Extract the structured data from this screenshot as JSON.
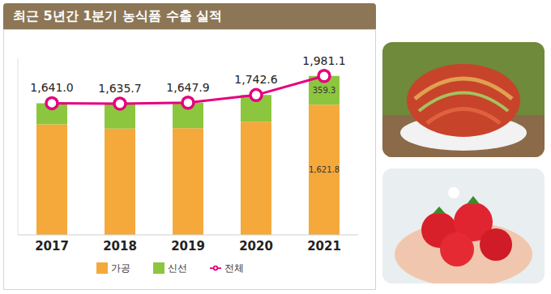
{
  "chart_data": {
    "type": "bar",
    "title": "최근 5년간 1분기 농식품 수출 실적",
    "categories": [
      "2017",
      "2018",
      "2019",
      "2020",
      "2021"
    ],
    "stacked": true,
    "ylim": [
      0,
      2200
    ],
    "yticks": [],
    "tick_labels": "x",
    "legend": "bottom",
    "series": [
      {
        "name": "가공",
        "color": "#f5a93b",
        "values": [
          1377,
          1325,
          1330,
          1410,
          1621.8
        ],
        "value_labels": [
          null,
          null,
          null,
          null,
          "1,621.8"
        ]
      },
      {
        "name": "신선",
        "color": "#8cc63e",
        "values": [
          264,
          310.7,
          317.9,
          332.6,
          359.3
        ],
        "value_labels": [
          null,
          null,
          null,
          null,
          "359.3"
        ]
      },
      {
        "name": "전체",
        "type": "line",
        "color": "#e5007e",
        "marker": "circle",
        "values": [
          1641.0,
          1635.7,
          1647.9,
          1742.6,
          1981.1
        ],
        "value_labels": [
          "1,641.0",
          "1,635.7",
          "1,647.9",
          "1,742.6",
          "1,981.1"
        ]
      }
    ]
  }
}
